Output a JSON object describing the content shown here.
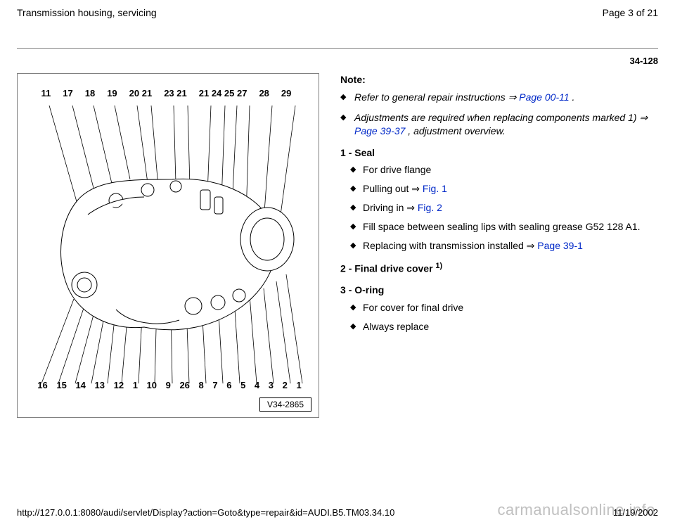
{
  "header": {
    "title": "Transmission housing, servicing",
    "pager": "Page 3 of 21"
  },
  "pagecode": "34-128",
  "figure": {
    "top_labels": [
      "11",
      "17",
      "18",
      "19",
      "20 21",
      "23 21",
      "21 24 25 27",
      "28",
      "29"
    ],
    "bottom_labels": [
      "16",
      "15",
      "14",
      "13",
      "12",
      "1",
      "10",
      "9",
      "26",
      "8",
      "7",
      "6",
      "5",
      "4",
      "3",
      "2",
      "1"
    ],
    "fig_id": "V34-2865"
  },
  "content": {
    "note_label": "Note:",
    "note_items": [
      {
        "pre": "Refer to general repair instructions  ⇒ ",
        "link": "Page 00-11",
        "post": " ."
      },
      {
        "pre": "Adjustments are required when replacing components marked 1)  ⇒ ",
        "link": "Page 39-37",
        "post": " , adjustment overview."
      }
    ],
    "items": [
      {
        "num": "1",
        "title": "Seal",
        "subs": [
          {
            "text": "For drive flange"
          },
          {
            "text": "Pulling out  ⇒ ",
            "link": "Fig. 1"
          },
          {
            "text": "Driving in  ⇒ ",
            "link": "Fig. 2"
          },
          {
            "text": "Fill space between sealing lips with sealing grease G52 128 A1."
          },
          {
            "text": "Replacing with transmission installed  ⇒ ",
            "link": "Page 39-1"
          }
        ]
      },
      {
        "num": "2",
        "title": "Final drive cover",
        "sup": "1)",
        "subs": []
      },
      {
        "num": "3",
        "title": "O-ring",
        "subs": [
          {
            "text": "For cover for final drive"
          },
          {
            "text": "Always replace"
          }
        ]
      }
    ]
  },
  "footer": {
    "url": "http://127.0.0.1:8080/audi/servlet/Display?action=Goto&type=repair&id=AUDI.B5.TM03.34.10",
    "date": "11/19/2002"
  },
  "watermark": "carmanualsonline.info",
  "colors": {
    "link": "#0028c8",
    "rule": "#808080"
  }
}
